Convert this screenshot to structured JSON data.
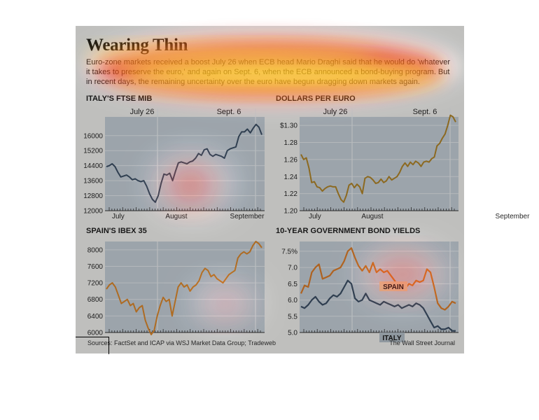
{
  "header": {
    "title": "Wearing Thin",
    "intro": "Euro-zone markets received a boost July 26 when ECB head Mario Draghi said that he would do 'whatever it takes to preserve the euro,' and again on Sept. 6, when the ECB announced a bond-buying program. But in recent days, the remaining uncertainty over the euro have begun dragging down markets again."
  },
  "colors": {
    "background": "#f6f6f4",
    "plot_area": "#c9d3dc",
    "ftse_line": "#3d5167",
    "dollar_line": "#b5882a",
    "ibex_line": "#e08a2c",
    "spain_line": "#e07f2a",
    "italy_line": "#3d5167",
    "heat_red": "#e02010",
    "heat_yellow": "#ffe21e"
  },
  "chart_data": [
    {
      "id": "ftse",
      "type": "line",
      "title": "ITALY'S FTSE MIB",
      "yticks": [
        "16000",
        "15200",
        "14400",
        "13600",
        "12800",
        "12000"
      ],
      "ylim": [
        12000,
        17000
      ],
      "month_labels": [
        "July",
        "August",
        "September"
      ],
      "event_labels": [
        "July 26",
        "Sept. 6"
      ],
      "grid": true,
      "series": [
        {
          "values": [
            14350,
            14400,
            14500,
            14350,
            14050,
            13800,
            13850,
            13900,
            13800,
            13650,
            13700,
            13600,
            13550,
            13600,
            13300,
            12900,
            12600,
            12450,
            12800,
            13450,
            13950,
            13900,
            14000,
            13600,
            14100,
            14550,
            14600,
            14550,
            14500,
            14600,
            14650,
            14800,
            15050,
            14950,
            15250,
            15300,
            15000,
            14900,
            15000,
            14950,
            14900,
            14800,
            15200,
            15300,
            15350,
            15400,
            15950,
            16200,
            16200,
            16350,
            16150,
            16400,
            16600,
            16450,
            16050
          ]
        }
      ]
    },
    {
      "id": "dollars",
      "type": "line",
      "title": "DOLLARS PER EURO",
      "yticks": [
        "$1.30",
        "1.28",
        "1.26",
        "1.24",
        "1.22",
        "1.20"
      ],
      "ylim": [
        1.2,
        1.31
      ],
      "month_labels": [
        "July",
        "August",
        "September"
      ],
      "event_labels": [
        "July 26",
        "Sept. 6"
      ],
      "grid": true,
      "series": [
        {
          "values": [
            1.266,
            1.26,
            1.262,
            1.25,
            1.233,
            1.234,
            1.228,
            1.227,
            1.223,
            1.226,
            1.228,
            1.229,
            1.228,
            1.228,
            1.22,
            1.213,
            1.21,
            1.218,
            1.23,
            1.232,
            1.227,
            1.231,
            1.228,
            1.22,
            1.238,
            1.24,
            1.239,
            1.236,
            1.232,
            1.233,
            1.237,
            1.233,
            1.235,
            1.24,
            1.236,
            1.238,
            1.24,
            1.245,
            1.252,
            1.256,
            1.252,
            1.257,
            1.254,
            1.258,
            1.256,
            1.252,
            1.257,
            1.258,
            1.257,
            1.261,
            1.263,
            1.276,
            1.279,
            1.285,
            1.29,
            1.3,
            1.312,
            1.31,
            1.304
          ]
        }
      ]
    },
    {
      "id": "ibex",
      "type": "line",
      "title": "SPAIN'S IBEX 35",
      "yticks": [
        "8000",
        "7600",
        "7200",
        "6800",
        "6400",
        "6000"
      ],
      "ylim": [
        6000,
        8200
      ],
      "month_labels": [],
      "event_labels": [],
      "grid": true,
      "series": [
        {
          "values": [
            7050,
            7150,
            7200,
            7100,
            6900,
            6700,
            6750,
            6800,
            6650,
            6700,
            6500,
            6600,
            6650,
            6300,
            6100,
            5950,
            6050,
            6400,
            6650,
            6850,
            6750,
            6800,
            6400,
            6750,
            7100,
            7200,
            7100,
            7150,
            7000,
            7100,
            7150,
            7250,
            7450,
            7550,
            7500,
            7350,
            7400,
            7300,
            7250,
            7200,
            7300,
            7400,
            7450,
            7500,
            7800,
            7900,
            7950,
            7900,
            7950,
            8100,
            8200,
            8150,
            8050
          ]
        }
      ]
    },
    {
      "id": "bonds",
      "type": "line",
      "title": "10-YEAR GOVERNMENT BOND YIELDS",
      "yticks": [
        "7.5%",
        "7.0",
        "6.5",
        "6.0",
        "5.5",
        "5.0"
      ],
      "ylim": [
        5.0,
        7.8
      ],
      "month_labels": [],
      "event_labels": [],
      "grid": true,
      "series": [
        {
          "name": "SPAIN",
          "values": [
            6.2,
            6.45,
            6.4,
            6.85,
            7.0,
            7.1,
            6.65,
            6.7,
            6.75,
            6.9,
            6.95,
            7.0,
            7.2,
            7.5,
            7.6,
            7.3,
            7.05,
            6.9,
            7.05,
            6.85,
            7.15,
            6.85,
            6.95,
            6.85,
            6.9,
            6.75,
            6.6,
            6.45,
            6.3,
            6.35,
            6.5,
            6.45,
            6.6,
            6.55,
            6.6,
            6.95,
            6.85,
            6.4,
            5.9,
            5.75,
            5.7,
            5.8,
            5.95,
            5.9
          ]
        },
        {
          "name": "ITALY",
          "values": [
            5.8,
            5.75,
            5.85,
            6.0,
            6.1,
            5.95,
            5.85,
            5.9,
            6.05,
            6.15,
            6.1,
            6.2,
            6.4,
            6.6,
            6.5,
            6.05,
            5.95,
            6.0,
            6.2,
            6.0,
            5.95,
            5.9,
            5.85,
            5.95,
            5.9,
            5.85,
            5.8,
            5.85,
            5.75,
            5.8,
            5.85,
            5.8,
            5.9,
            5.85,
            5.75,
            5.55,
            5.35,
            5.15,
            5.2,
            5.1,
            5.1,
            5.15,
            5.05,
            5.05
          ]
        }
      ]
    }
  ],
  "footer": {
    "source": "Sources: FactSet and ICAP via WSJ Market Data Group; Tradeweb",
    "credit": "The Wall Street Journal"
  }
}
